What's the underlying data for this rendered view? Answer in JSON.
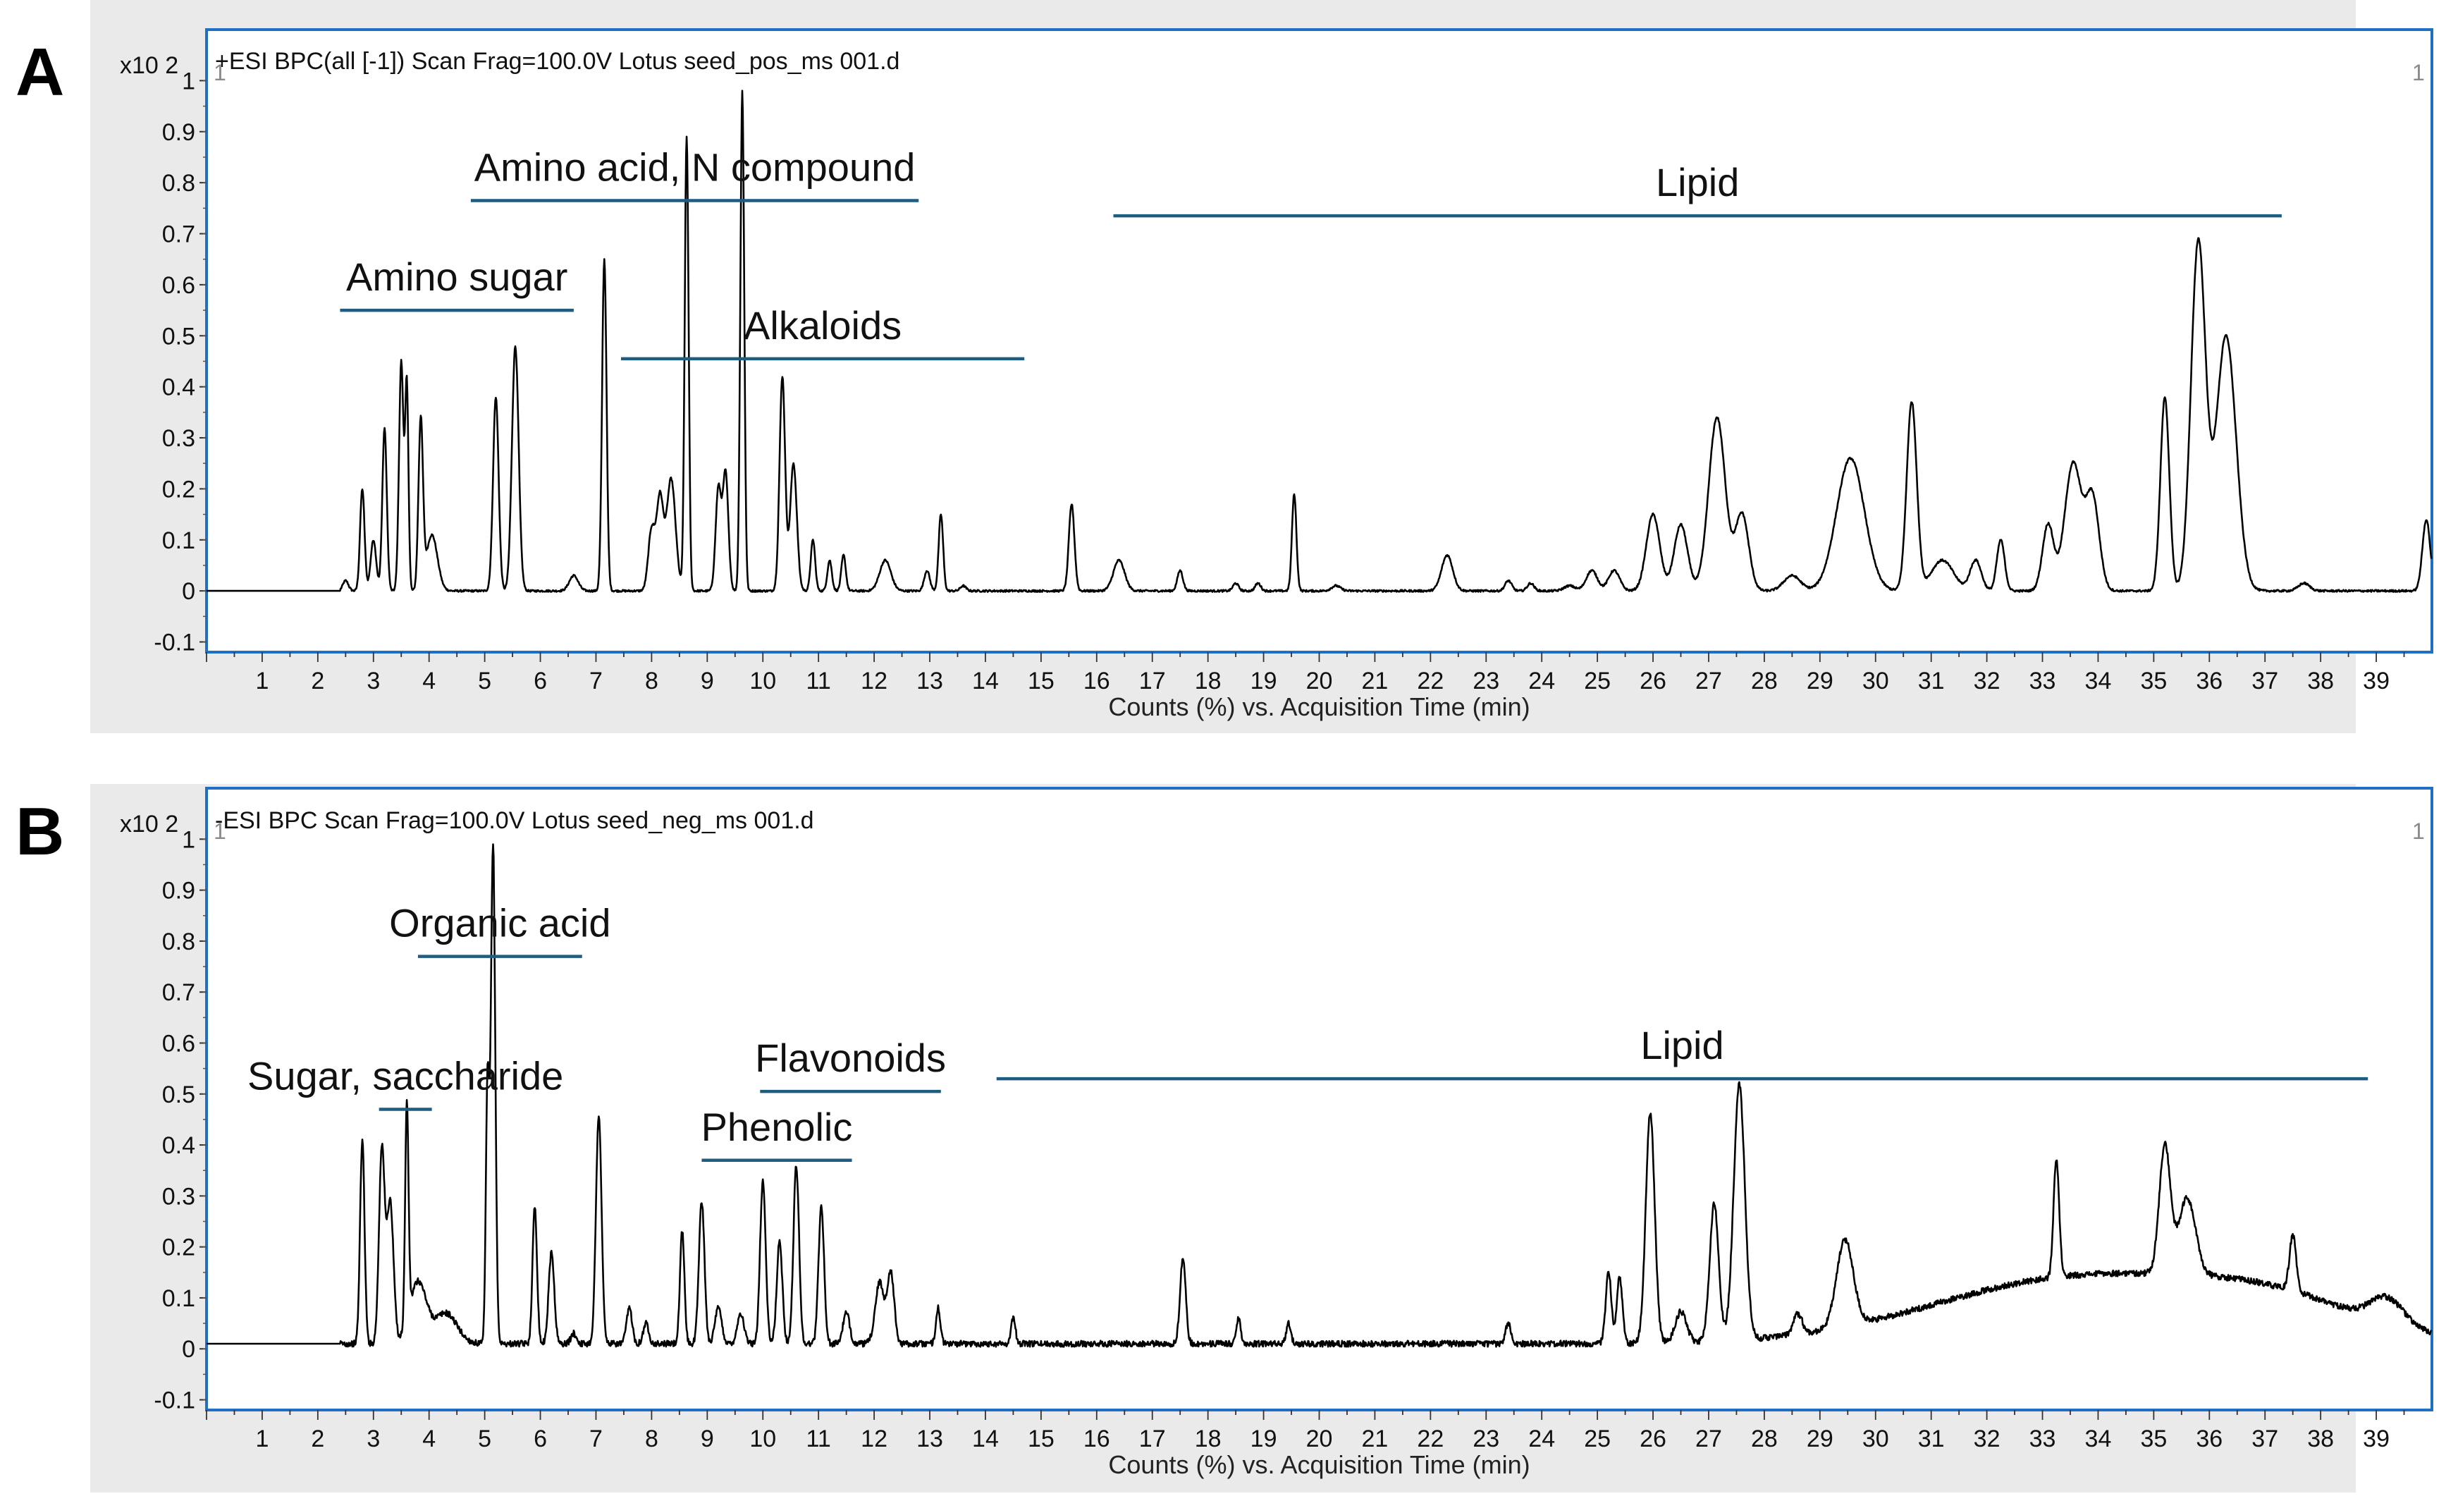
{
  "colors": {
    "panel_bg": "#eaeaea",
    "plot_border": "#1f6fc4",
    "trace": "#000000",
    "annotation_line": "#1f5d80"
  },
  "chart_data": [
    {
      "panel_label": "A",
      "type": "line",
      "title": "+ESI BPC(all [-1]) Scan Frag=100.0V Lotus seed_pos_ms 001.d",
      "xlabel": "Counts (%) vs. Acquisition Time (min)",
      "y_exponent": "x10 2",
      "corner_marker_left": "1",
      "corner_marker_right": "1",
      "xlim": [
        0,
        40
      ],
      "ylim": [
        -0.12,
        1.1
      ],
      "x_ticks": [
        "1",
        "2",
        "3",
        "4",
        "5",
        "6",
        "7",
        "8",
        "9",
        "10",
        "11",
        "12",
        "13",
        "14",
        "15",
        "16",
        "17",
        "18",
        "19",
        "20",
        "21",
        "22",
        "23",
        "24",
        "25",
        "26",
        "27",
        "28",
        "29",
        "30",
        "31",
        "32",
        "33",
        "34",
        "35",
        "36",
        "37",
        "38",
        "39"
      ],
      "y_ticks": [
        "-0.1",
        "0",
        "0.1",
        "0.2",
        "0.3",
        "0.4",
        "0.5",
        "0.6",
        "0.7",
        "0.8",
        "0.9",
        "1"
      ],
      "baseline": 0,
      "peaks": [
        [
          2.5,
          0.02,
          0.05
        ],
        [
          2.8,
          0.2,
          0.04
        ],
        [
          3.0,
          0.1,
          0.05
        ],
        [
          3.2,
          0.32,
          0.04
        ],
        [
          3.5,
          0.45,
          0.04
        ],
        [
          3.6,
          0.4,
          0.03
        ],
        [
          3.85,
          0.33,
          0.04
        ],
        [
          4.05,
          0.11,
          0.1
        ],
        [
          5.2,
          0.38,
          0.05
        ],
        [
          5.55,
          0.48,
          0.06
        ],
        [
          6.6,
          0.03,
          0.08
        ],
        [
          7.15,
          0.65,
          0.04
        ],
        [
          8.0,
          0.12,
          0.06
        ],
        [
          8.15,
          0.18,
          0.06
        ],
        [
          8.35,
          0.22,
          0.08
        ],
        [
          8.63,
          0.89,
          0.035
        ],
        [
          9.2,
          0.2,
          0.05
        ],
        [
          9.33,
          0.23,
          0.05
        ],
        [
          9.63,
          0.98,
          0.035
        ],
        [
          10.35,
          0.42,
          0.05
        ],
        [
          10.55,
          0.25,
          0.06
        ],
        [
          10.9,
          0.1,
          0.04
        ],
        [
          11.2,
          0.06,
          0.04
        ],
        [
          11.45,
          0.07,
          0.04
        ],
        [
          12.2,
          0.06,
          0.1
        ],
        [
          12.95,
          0.04,
          0.05
        ],
        [
          13.2,
          0.15,
          0.04
        ],
        [
          13.6,
          0.01,
          0.05
        ],
        [
          15.55,
          0.17,
          0.05
        ],
        [
          16.4,
          0.06,
          0.1
        ],
        [
          17.5,
          0.04,
          0.05
        ],
        [
          18.5,
          0.015,
          0.05
        ],
        [
          18.9,
          0.015,
          0.05
        ],
        [
          19.55,
          0.19,
          0.04
        ],
        [
          20.3,
          0.01,
          0.08
        ],
        [
          22.3,
          0.07,
          0.1
        ],
        [
          23.4,
          0.02,
          0.06
        ],
        [
          23.8,
          0.015,
          0.06
        ],
        [
          24.5,
          0.01,
          0.1
        ],
        [
          24.9,
          0.04,
          0.1
        ],
        [
          25.3,
          0.04,
          0.1
        ],
        [
          26.0,
          0.15,
          0.12
        ],
        [
          26.5,
          0.13,
          0.12
        ],
        [
          27.15,
          0.34,
          0.15
        ],
        [
          27.6,
          0.15,
          0.12
        ],
        [
          28.5,
          0.03,
          0.15
        ],
        [
          29.55,
          0.26,
          0.25
        ],
        [
          30.65,
          0.37,
          0.09
        ],
        [
          31.2,
          0.06,
          0.2
        ],
        [
          31.8,
          0.06,
          0.1
        ],
        [
          32.25,
          0.1,
          0.07
        ],
        [
          33.1,
          0.13,
          0.1
        ],
        [
          33.55,
          0.25,
          0.15
        ],
        [
          33.9,
          0.18,
          0.12
        ],
        [
          35.2,
          0.38,
          0.08
        ],
        [
          35.8,
          0.68,
          0.13
        ],
        [
          36.3,
          0.5,
          0.18
        ],
        [
          37.7,
          0.015,
          0.1
        ],
        [
          39.9,
          0.14,
          0.07
        ]
      ],
      "annotations": [
        {
          "text": "Amino sugar",
          "x1": 2.4,
          "x2": 6.6,
          "y": 0.55
        },
        {
          "text": "Amino acid, N compound",
          "x1": 4.75,
          "x2": 12.8,
          "y": 0.765
        },
        {
          "text": "Alkaloids",
          "x1": 7.45,
          "x2": 14.7,
          "y": 0.455
        },
        {
          "text": "Lipid",
          "x1": 16.3,
          "x2": 37.3,
          "y": 0.735
        }
      ]
    },
    {
      "panel_label": "B",
      "type": "line",
      "title": "-ESI BPC Scan Frag=100.0V Lotus seed_neg_ms 001.d",
      "xlabel": "Counts (%) vs. Acquisition Time (min)",
      "y_exponent": "x10 2",
      "corner_marker_left": "1",
      "corner_marker_right": "1",
      "xlim": [
        0,
        40
      ],
      "ylim": [
        -0.12,
        1.1
      ],
      "x_ticks": [
        "1",
        "2",
        "3",
        "4",
        "5",
        "6",
        "7",
        "8",
        "9",
        "10",
        "11",
        "12",
        "13",
        "14",
        "15",
        "16",
        "17",
        "18",
        "19",
        "20",
        "21",
        "22",
        "23",
        "24",
        "25",
        "26",
        "27",
        "28",
        "29",
        "30",
        "31",
        "32",
        "33",
        "34",
        "35",
        "36",
        "37",
        "38",
        "39"
      ],
      "y_ticks": [
        "-0.1",
        "0",
        "0.1",
        "0.2",
        "0.3",
        "0.4",
        "0.5",
        "0.6",
        "0.7",
        "0.8",
        "0.9",
        "1"
      ],
      "baseline": 0.01,
      "peaks": [
        [
          2.8,
          0.4,
          0.04
        ],
        [
          3.15,
          0.38,
          0.05
        ],
        [
          3.3,
          0.28,
          0.06
        ],
        [
          3.6,
          0.43,
          0.03
        ],
        [
          3.8,
          0.12,
          0.15
        ],
        [
          4.3,
          0.06,
          0.2
        ],
        [
          5.05,
          0.5,
          0.03
        ],
        [
          5.15,
          0.98,
          0.04
        ],
        [
          5.9,
          0.27,
          0.04
        ],
        [
          6.2,
          0.18,
          0.05
        ],
        [
          6.6,
          0.02,
          0.05
        ],
        [
          7.05,
          0.45,
          0.05
        ],
        [
          7.6,
          0.07,
          0.05
        ],
        [
          7.9,
          0.04,
          0.05
        ],
        [
          8.55,
          0.22,
          0.04
        ],
        [
          8.9,
          0.28,
          0.05
        ],
        [
          9.2,
          0.07,
          0.06
        ],
        [
          9.6,
          0.06,
          0.06
        ],
        [
          10.0,
          0.32,
          0.05
        ],
        [
          10.3,
          0.2,
          0.05
        ],
        [
          10.6,
          0.35,
          0.05
        ],
        [
          11.05,
          0.27,
          0.05
        ],
        [
          11.5,
          0.06,
          0.06
        ],
        [
          12.1,
          0.12,
          0.08
        ],
        [
          12.3,
          0.14,
          0.06
        ],
        [
          13.15,
          0.07,
          0.04
        ],
        [
          14.5,
          0.05,
          0.04
        ],
        [
          17.55,
          0.17,
          0.05
        ],
        [
          18.55,
          0.05,
          0.04
        ],
        [
          19.45,
          0.04,
          0.04
        ],
        [
          23.4,
          0.04,
          0.05
        ],
        [
          25.2,
          0.14,
          0.05
        ],
        [
          25.4,
          0.13,
          0.05
        ],
        [
          25.95,
          0.45,
          0.08
        ],
        [
          26.5,
          0.06,
          0.1
        ],
        [
          27.1,
          0.27,
          0.08
        ],
        [
          27.55,
          0.5,
          0.1
        ],
        [
          28.6,
          0.04,
          0.08
        ],
        [
          29.45,
          0.17,
          0.15
        ],
        [
          33.25,
          0.23,
          0.05
        ],
        [
          35.2,
          0.25,
          0.1
        ],
        [
          35.6,
          0.15,
          0.15
        ],
        [
          37.5,
          0.11,
          0.06
        ],
        [
          39.2,
          0.05,
          0.3
        ]
      ],
      "humps": [
        [
          33.7,
          0.13,
          2.6
        ],
        [
          37.2,
          0.06,
          1.6
        ]
      ],
      "annotations": [
        {
          "text": "Sugar, saccharide",
          "x1": 3.1,
          "x2": 4.05,
          "y": 0.47
        },
        {
          "text": "Organic acid",
          "x1": 3.8,
          "x2": 6.75,
          "y": 0.77
        },
        {
          "text": "Phenolic",
          "x1": 8.9,
          "x2": 11.6,
          "y": 0.37
        },
        {
          "text": "Flavonoids",
          "x1": 9.95,
          "x2": 13.2,
          "y": 0.505
        },
        {
          "text": "Lipid",
          "x1": 14.2,
          "x2": 38.85,
          "y": 0.53
        }
      ]
    }
  ]
}
